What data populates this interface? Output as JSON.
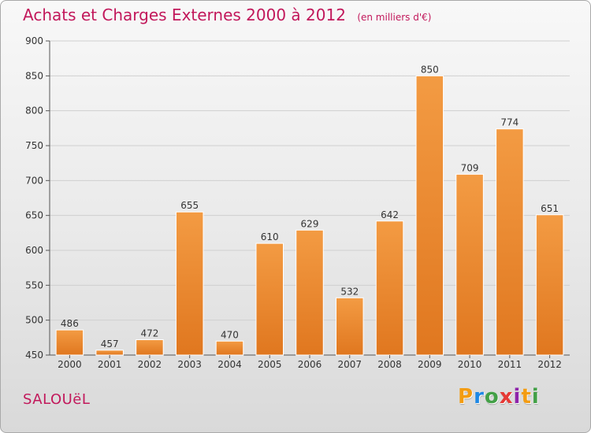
{
  "header": {
    "title": "Achats et Charges Externes 2000 à 2012",
    "subtitle": "(en milliers d'€)"
  },
  "footer": {
    "commune": "SALOUëL"
  },
  "logo": {
    "letters": [
      "P",
      "r",
      "o",
      "x",
      "i",
      "t",
      "i"
    ],
    "colors": [
      "#f39c12",
      "#1e88e5",
      "#43a047",
      "#e53935",
      "#8e24aa",
      "#f39c12",
      "#43a047"
    ]
  },
  "colors": {
    "bar": "#f39b43",
    "bar_dark": "#e0771f",
    "title": "#c2185b"
  },
  "chart_data": {
    "type": "bar",
    "categories": [
      "2000",
      "2001",
      "2002",
      "2003",
      "2004",
      "2005",
      "2006",
      "2007",
      "2008",
      "2009",
      "2010",
      "2011",
      "2012"
    ],
    "values": [
      486,
      457,
      472,
      655,
      470,
      610,
      629,
      532,
      642,
      850,
      709,
      774,
      651
    ],
    "ylim": [
      450,
      900
    ],
    "yticks": [
      450,
      500,
      550,
      600,
      650,
      700,
      750,
      800,
      850,
      900
    ],
    "grid": true
  }
}
